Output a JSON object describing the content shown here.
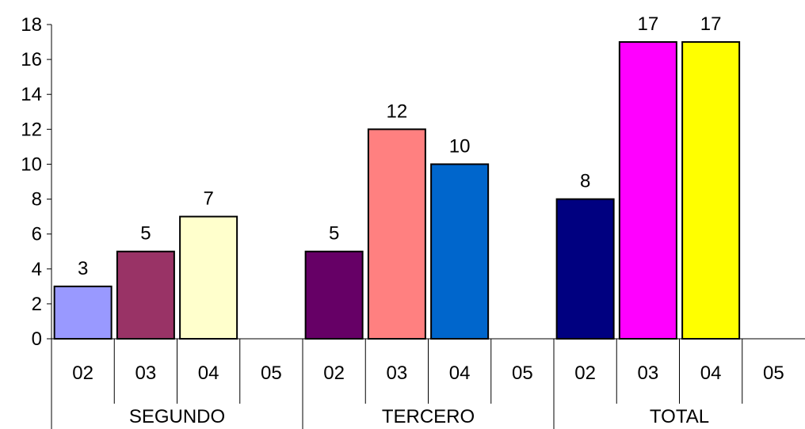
{
  "chart_data": {
    "type": "bar",
    "title": "",
    "xlabel": "",
    "ylabel": "",
    "ylim": [
      0,
      18
    ],
    "yticks": [
      "0",
      "2",
      "4",
      "6",
      "8",
      "10",
      "12",
      "14",
      "16",
      "18"
    ],
    "grid": false,
    "legend": "none",
    "groups": [
      {
        "label": "SEGUNDO",
        "bars": [
          {
            "category": "02",
            "value": 3,
            "label": "3",
            "color": "#9999FF"
          },
          {
            "category": "03",
            "value": 5,
            "label": "5",
            "color": "#993366"
          },
          {
            "category": "04",
            "value": 7,
            "label": "7",
            "color": "#FFFFCC"
          },
          {
            "category": "05",
            "value": null,
            "label": "",
            "color": ""
          }
        ]
      },
      {
        "label": "TERCERO",
        "bars": [
          {
            "category": "02",
            "value": 5,
            "label": "5",
            "color": "#660066"
          },
          {
            "category": "03",
            "value": 12,
            "label": "12",
            "color": "#FF8080"
          },
          {
            "category": "04",
            "value": 10,
            "label": "10",
            "color": "#0066CC"
          },
          {
            "category": "05",
            "value": null,
            "label": "",
            "color": ""
          }
        ]
      },
      {
        "label": "TOTAL",
        "bars": [
          {
            "category": "02",
            "value": 8,
            "label": "8",
            "color": "#000080"
          },
          {
            "category": "03",
            "value": 17,
            "label": "17",
            "color": "#FF00FF"
          },
          {
            "category": "04",
            "value": 17,
            "label": "17",
            "color": "#FFFF00"
          },
          {
            "category": "05",
            "value": null,
            "label": "",
            "color": ""
          }
        ]
      }
    ]
  }
}
